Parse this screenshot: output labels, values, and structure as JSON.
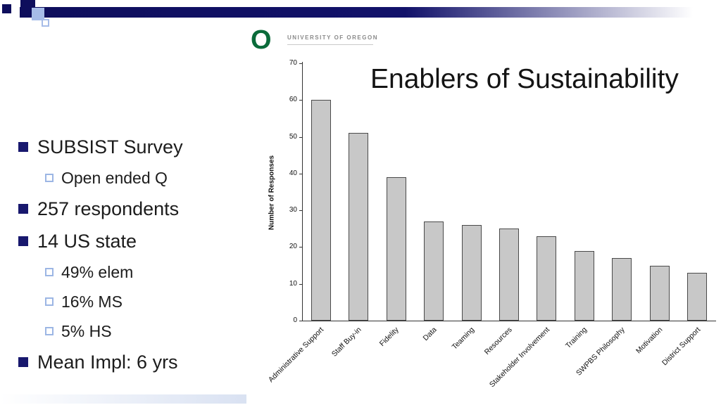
{
  "slide": {
    "bullets": [
      {
        "level": 1,
        "text": "SUBSIST Survey"
      },
      {
        "level": 2,
        "text": "Open ended Q"
      },
      {
        "level": 1,
        "text": "257 respondents"
      },
      {
        "level": 1,
        "text": "14 US state"
      },
      {
        "level": 2,
        "text": "49% elem"
      },
      {
        "level": 2,
        "text": "16% MS"
      },
      {
        "level": 2,
        "text": "5% HS"
      },
      {
        "level": 1,
        "text": "Mean Impl: 6 yrs"
      }
    ]
  },
  "logo": {
    "mark": "O",
    "text": "UNIVERSITY OF OREGON"
  },
  "chart_data": {
    "type": "bar",
    "title": "Enablers of Sustainability",
    "xlabel": "",
    "ylabel": "Number of Responses",
    "ylim": [
      0,
      70
    ],
    "ytick_step": 10,
    "grid": false,
    "legend": false,
    "bar_color": "#c8c8c8",
    "bar_border": "#4a4a4a",
    "categories": [
      "Administrative Support",
      "Staff Buy-in",
      "Fidelity",
      "Data",
      "Teaming",
      "Resources",
      "Stakeholder Involvement",
      "Training",
      "SWPBS Philosophy",
      "Motivation",
      "District Support"
    ],
    "values": [
      60,
      51,
      39,
      27,
      26,
      25,
      23,
      19,
      17,
      15,
      13
    ]
  },
  "colors": {
    "banner_navy": "#0e0e5c",
    "bullet_navy": "#18186e",
    "bullet_light_blue": "#9cb6e4",
    "logo_green": "#0b6b3a",
    "bar_gray": "#c8c8c8"
  }
}
